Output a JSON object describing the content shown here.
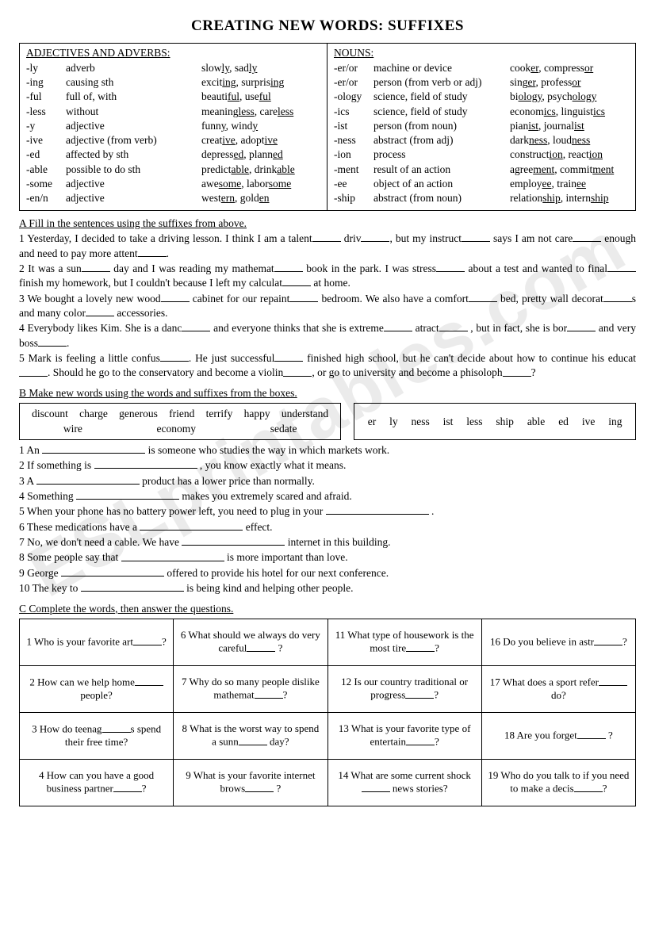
{
  "title": "CREATING NEW WORDS: SUFFIXES",
  "watermark": "ESLprintables.com",
  "adjAdv": {
    "header": "ADJECTIVES AND ADVERBS:",
    "rows": [
      {
        "sfx": "-ly",
        "mean": "adverb",
        "ex": "slow<span class='u'>ly</span>, sad<span class='u'>ly</span>"
      },
      {
        "sfx": "-ing",
        "mean": "causing sth",
        "ex": "excit<span class='u'>ing</span>, surpris<span class='u'>ing</span>"
      },
      {
        "sfx": "-ful",
        "mean": "full of, with",
        "ex": "beauti<span class='u'>ful</span>, use<span class='u'>ful</span>"
      },
      {
        "sfx": "-less",
        "mean": "without",
        "ex": "meaning<span class='u'>less</span>, care<span class='u'>less</span>"
      },
      {
        "sfx": "-y",
        "mean": "adjective",
        "ex": "funn<span class='u'>y</span>, wind<span class='u'>y</span>"
      },
      {
        "sfx": "-ive",
        "mean": "adjective (from verb)",
        "ex": "creat<span class='u'>ive</span>, adopt<span class='u'>ive</span>"
      },
      {
        "sfx": "-ed",
        "mean": "affected by sth",
        "ex": "depress<span class='u'>ed</span>, plann<span class='u'>ed</span>"
      },
      {
        "sfx": "-able",
        "mean": "possible to do sth",
        "ex": "predict<span class='u'>able</span>, drink<span class='u'>able</span>"
      },
      {
        "sfx": "-some",
        "mean": "adjective",
        "ex": "awe<span class='u'>some</span>, labor<span class='u'>some</span>"
      },
      {
        "sfx": "-en/n",
        "mean": "adjective",
        "ex": "west<span class='u'>ern</span>, gold<span class='u'>en</span>"
      }
    ]
  },
  "nouns": {
    "header": "NOUNS:",
    "rows": [
      {
        "sfx": "-er/or",
        "mean": "machine or device",
        "ex": "cook<span class='u'>er</span>, compress<span class='u'>or</span>"
      },
      {
        "sfx": "-er/or",
        "mean": "person (from verb or adj)",
        "ex": "sing<span class='u'>er</span>, profess<span class='u'>or</span>"
      },
      {
        "sfx": "-ology",
        "mean": "science, field of study",
        "ex": "bi<span class='u'>ology</span>, psych<span class='u'>ology</span>"
      },
      {
        "sfx": "-ics",
        "mean": "science, field of study",
        "ex": "econom<span class='u'>ics</span>, linguist<span class='u'>ics</span>"
      },
      {
        "sfx": "-ist",
        "mean": "person (from noun)",
        "ex": "pian<span class='u'>ist</span>, journal<span class='u'>ist</span>"
      },
      {
        "sfx": "-ness",
        "mean": "abstract (from adj)",
        "ex": "dark<span class='u'>ness</span>, loud<span class='u'>ness</span>"
      },
      {
        "sfx": "-ion",
        "mean": "process",
        "ex": "construct<span class='u'>ion</span>, react<span class='u'>ion</span>"
      },
      {
        "sfx": "-ment",
        "mean": "result of an action",
        "ex": "agree<span class='u'>ment</span>, commit<span class='u'>ment</span>"
      },
      {
        "sfx": "-ee",
        "mean": "object of an action",
        "ex": "employ<span class='u'>ee</span>, train<span class='u'>ee</span>"
      },
      {
        "sfx": "-ship",
        "mean": "abstract (from noun)",
        "ex": "relation<span class='u'>ship</span>, intern<span class='u'>ship</span>"
      }
    ]
  },
  "sectionA": {
    "head": "A Fill in the sentences using the suffixes from above.",
    "lines": [
      "1 Yesterday, I decided to take a driving lesson. I think I am a talent<span class='blank'></span> driv<span class='blank'></span>, but my instruct<span class='blank'></span> says I am not care<span class='blank'></span> enough and need to pay more attent<span class='blank'></span>.",
      "2 It was a sun<span class='blank'></span> day and I was reading my mathemat<span class='blank'></span> book in the park. I was stress<span class='blank'></span> about a test and wanted to final<span class='blank'></span> finish my homework, but I couldn't because I left my calculat<span class='blank'></span> at home.",
      "3 We bought a lovely new wood<span class='blank'></span> cabinet for our repaint<span class='blank'></span> bedroom. We also have a comfort<span class='blank'></span> bed, pretty wall decorat<span class='blank'></span>s and many color<span class='blank'></span> accessories.",
      "4 Everybody likes Kim. She is a danc<span class='blank'></span> and everyone thinks that she is extreme<span class='blank'></span> atract<span class='blank'></span> , but in fact, she is bor<span class='blank'></span> and very boss<span class='blank'></span>.",
      "5 Mark is feeling a little confus<span class='blank'></span>. He just successful<span class='blank'></span> finished high school, but he can't decide about how to continue his educat<span class='blank'></span>. Should he go to the conservatory and become a violin<span class='blank'></span>, or go to university and become a phisoloph<span class='blank'></span>?"
    ]
  },
  "sectionB": {
    "head": "B Make new words using the words and suffixes from the boxes.",
    "leftBox": [
      "discount",
      "charge",
      "generous",
      "friend",
      "terrify",
      "happy",
      "understand",
      "wire",
      "economy",
      "sedate"
    ],
    "rightBox": [
      "er",
      "ly",
      "ness",
      "ist",
      "less",
      "ship",
      "able",
      "ed",
      "ive",
      "ing"
    ],
    "lines": [
      "1 An <span class='blank blank-long'></span> is someone who studies the way in which markets work.",
      "2 If something is <span class='blank blank-long'></span> , you know exactly what it means.",
      "3 A <span class='blank blank-long'></span> product has a lower price than normally.",
      "4 Something <span class='blank blank-long'></span> makes you extremely scared and afraid.",
      "5 When your phone has no battery power left, you need to plug in your <span class='blank blank-long'></span> .",
      "6 These medications have a <span class='blank blank-long'></span> effect.",
      "7 No, we don't need a cable. We have <span class='blank blank-long'></span> internet in this building.",
      "8 Some people say that <span class='blank blank-long'></span> is more important than love.",
      "9 George <span class='blank blank-long'></span> offered to provide his hotel for our next conference.",
      "10 The key to <span class='blank blank-long'></span> is being kind and helping other people."
    ]
  },
  "sectionC": {
    "head": "C Complete the words, then answer the questions.",
    "cells": [
      [
        "1 Who is your favorite art<span class='blank'></span>?",
        "6 What should we always do very careful<span class='blank'></span> ?",
        "11 What type of housework is the most tire<span class='blank'></span>?",
        "16 Do you believe in astr<span class='blank'></span>?"
      ],
      [
        "2 How can we help home<span class='blank'></span> people?",
        "7 Why do so many people dislike mathemat<span class='blank'></span>?",
        "12 Is our country traditional or progress<span class='blank'></span>?",
        "17 What does a  sport refer<span class='blank'></span> do?"
      ],
      [
        "3 How do teenag<span class='blank'></span>s spend their free time?",
        "8 What is the worst way to spend a sunn<span class='blank'></span> day?",
        "13 What is your favorite type of entertain<span class='blank'></span>?",
        "18 Are you forget<span class='blank'></span> ?"
      ],
      [
        "4 How can you have a good business partner<span class='blank'></span>?",
        "9 What is your favorite internet brows<span class='blank'></span> ?",
        "14 What are some current shock<span class='blank'></span> news stories?",
        "19 Who do you talk to if you need to make a decis<span class='blank'></span>?"
      ]
    ]
  }
}
